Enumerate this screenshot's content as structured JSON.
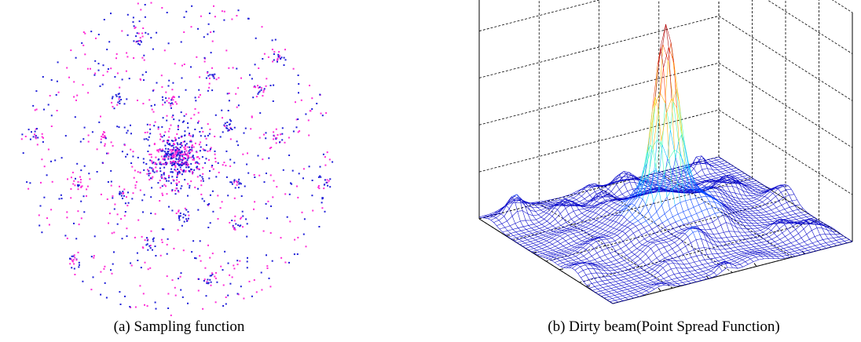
{
  "figure": {
    "panel_a": {
      "caption": "(a) Sampling function",
      "point_colors": [
        "#1f1fd8",
        "#ff2bd6"
      ]
    },
    "panel_b": {
      "caption": "(b) Dirty beam(Point Spread Function)",
      "colormap": [
        "#0000c8",
        "#0040ff",
        "#00c0ff",
        "#40ffb0",
        "#d0ff30",
        "#ffb000",
        "#ff3000",
        "#b00000"
      ],
      "grid_line_color": "#000000"
    }
  }
}
